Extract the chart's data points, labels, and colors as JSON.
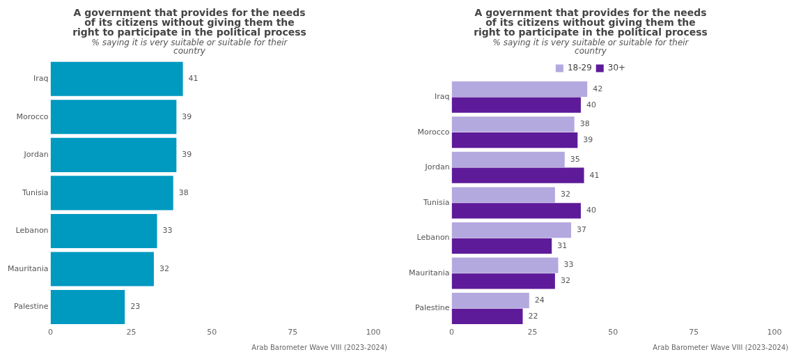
{
  "chart_data": [
    {
      "type": "bar",
      "orientation": "horizontal",
      "title": "A government that provides for the needs of its citizens without giving them the right to participate in the political process",
      "subtitle": "% saying it is very suitable or suitable for their country",
      "categories": [
        "Iraq",
        "Morocco",
        "Jordan",
        "Tunisia",
        "Lebanon",
        "Mauritania",
        "Palestine"
      ],
      "values": [
        41,
        39,
        39,
        38,
        33,
        32,
        23
      ],
      "color": "#0099c0",
      "xlim": [
        0,
        100
      ],
      "xticks": [
        0,
        25,
        50,
        75,
        100
      ],
      "grid": false,
      "legend": false,
      "data_labels": true,
      "annotations": [
        "Arab Barometer Wave VIII (2023-2024)"
      ]
    },
    {
      "type": "bar",
      "orientation": "horizontal",
      "title": "A government that provides for the needs of its citizens without giving them the right to participate in the political process",
      "subtitle": "% saying it is very suitable or suitable for their country",
      "categories": [
        "Iraq",
        "Morocco",
        "Jordan",
        "Tunisia",
        "Lebanon",
        "Mauritania",
        "Palestine"
      ],
      "series": [
        {
          "name": "18-29",
          "color": "#b3a9df",
          "values": [
            42,
            38,
            35,
            32,
            37,
            33,
            24
          ]
        },
        {
          "name": "30+",
          "color": "#5e1b99",
          "values": [
            40,
            39,
            41,
            40,
            31,
            32,
            22
          ]
        }
      ],
      "xlim": [
        0,
        100
      ],
      "xticks": [
        0,
        25,
        50,
        75,
        100
      ],
      "grid": false,
      "legend": "top",
      "data_labels": true,
      "annotations": [
        "Arab Barometer Wave VIII (2023-2024)"
      ]
    }
  ]
}
